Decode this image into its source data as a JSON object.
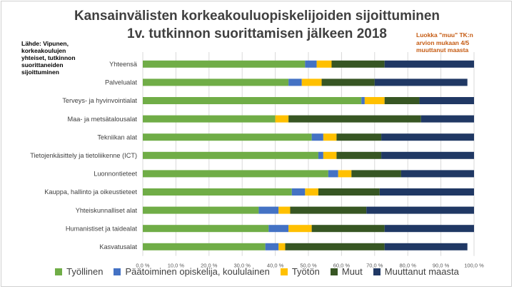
{
  "chart_data": {
    "type": "bar",
    "orientation": "horizontal",
    "stacked": true,
    "title_line1": "Kansainvälisten korkeakouluopiskelijoiden sijoittuminen",
    "title_line2": "1v. tutkinnon suorittamisen jälkeen 2018",
    "source_note": "Lähde: Vipunen, korkeakoulujen yhteiset, tutkinnon suorittaneiden sijoittuminen",
    "side_note": "Luokka \"muu\" TK:n arvion mukaan 4/5 muuttanut maasta",
    "xlim": [
      0,
      100
    ],
    "xticks": [
      "0,0 %",
      "10,0 %",
      "20,0 %",
      "30,0 %",
      "40,0 %",
      "50,0 %",
      "60,0 %",
      "70,0 %",
      "80,0 %",
      "90,0 %",
      "100,0 %"
    ],
    "grid": true,
    "legend_position": "bottom",
    "categories": [
      "Yhteensä",
      "Palvelualat",
      "Terveys- ja hyvinvointialat",
      "Maa- ja metsätalousalat",
      "Tekniikan alat",
      "Tietojenkäsittely ja tietoliikenne (ICT)",
      "Luonnontieteet",
      "Kauppa, hallinto ja oikeustieteet",
      "Yhteiskunnalliset alat",
      "Humanistiset ja taidealat",
      "Kasvatusalat"
    ],
    "series": [
      {
        "name": "Työllinen",
        "color": "#70ad47",
        "values": [
          49,
          44,
          66,
          40,
          51,
          53,
          56,
          45,
          35,
          38,
          37
        ]
      },
      {
        "name": "Päätoiminen opiskelija, koululainen",
        "color": "#4472c4",
        "values": [
          3.5,
          4,
          1,
          0,
          3.5,
          1.5,
          3,
          4,
          6,
          6,
          4
        ]
      },
      {
        "name": "Työtön",
        "color": "#ffc000",
        "values": [
          4.5,
          6,
          6,
          4,
          4,
          4,
          4,
          4,
          3.5,
          7,
          2
        ]
      },
      {
        "name": "Muut",
        "color": "#375623",
        "values": [
          16,
          16,
          10.5,
          40,
          13.5,
          13.5,
          15,
          18.5,
          23,
          22,
          30
        ]
      },
      {
        "name": "Muuttanut maasta",
        "color": "#203864",
        "values": [
          27,
          28,
          16.5,
          16,
          28,
          28,
          22,
          28.5,
          32.5,
          27,
          25
        ]
      }
    ]
  }
}
